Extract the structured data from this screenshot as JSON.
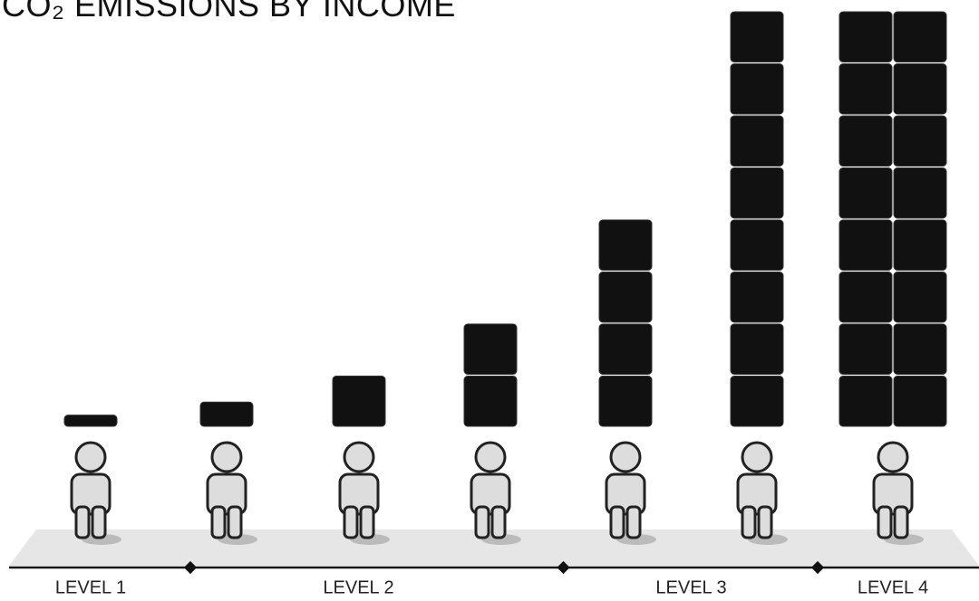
{
  "chart_data": {
    "type": "pictogram",
    "title": "CO₂ EMISSIONS BY INCOME",
    "categories": [
      "LEVEL 1",
      "LEVEL 2",
      "LEVEL 2",
      "LEVEL 2",
      "LEVEL 3",
      "LEVEL 3",
      "LEVEL 4"
    ],
    "values": [
      0.25,
      0.5,
      1,
      2,
      4,
      8,
      16
    ],
    "color": "#111111"
  }
}
